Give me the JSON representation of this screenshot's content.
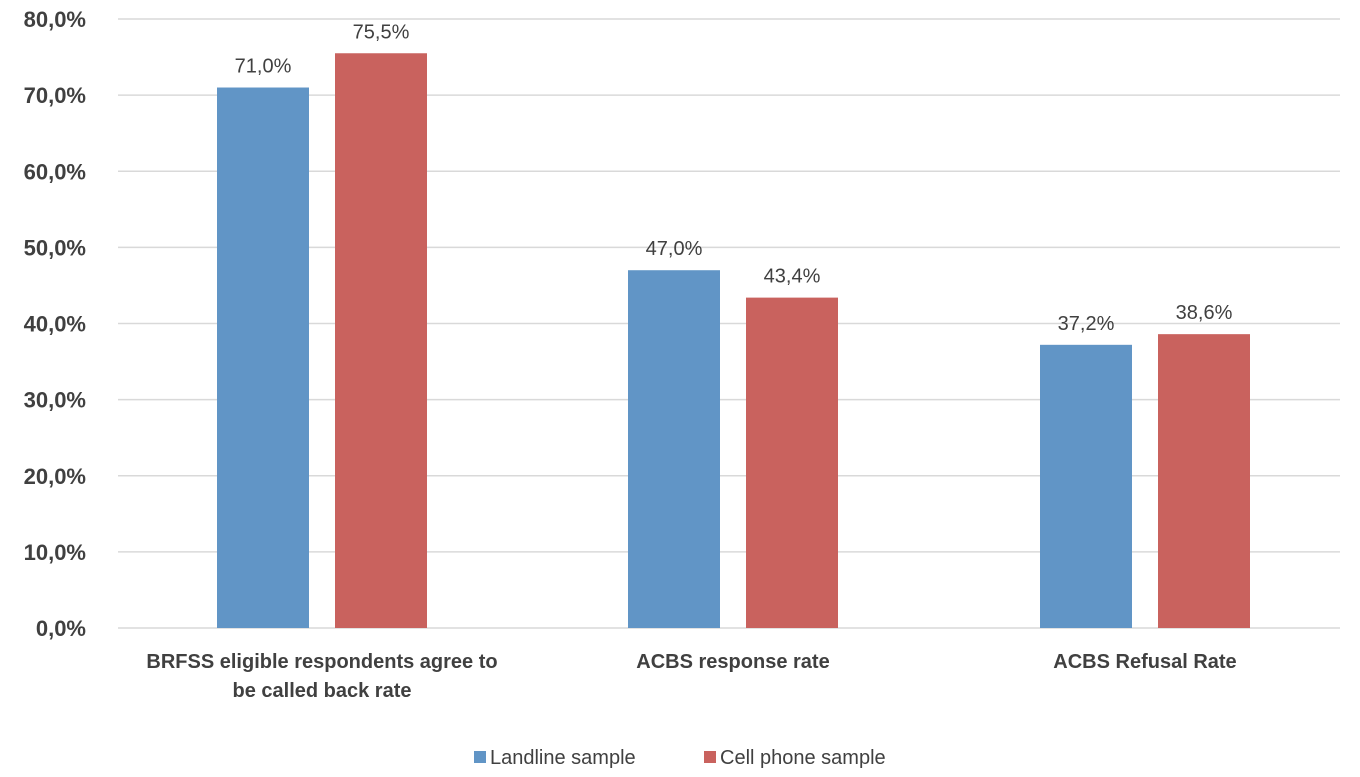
{
  "chart_data": {
    "type": "bar",
    "title": "",
    "xlabel": "",
    "ylabel": "",
    "categories": [
      [
        "BRFSS eligible respondents agree to",
        "be called back rate"
      ],
      [
        "ACBS response rate"
      ],
      [
        "ACBS Refusal Rate"
      ]
    ],
    "series": [
      {
        "name": "Landline sample",
        "color": "#6195c6",
        "values": [
          71.0,
          47.0,
          37.2
        ],
        "labels": [
          "71,0%",
          "47,0%",
          "37,2%"
        ]
      },
      {
        "name": "Cell phone sample",
        "color": "#c9625e",
        "values": [
          75.5,
          43.4,
          38.6
        ],
        "labels": [
          "75,5%",
          "43,4%",
          "38,6%"
        ]
      }
    ],
    "ylim": [
      0,
      80
    ],
    "yticks": [
      0,
      10,
      20,
      30,
      40,
      50,
      60,
      70,
      80
    ],
    "ytick_labels": [
      "0,0%",
      "10,0%",
      "20,0%",
      "30,0%",
      "40,0%",
      "50,0%",
      "60,0%",
      "70,0%",
      "80,0%"
    ],
    "grid": true,
    "legend_position": "bottom"
  }
}
